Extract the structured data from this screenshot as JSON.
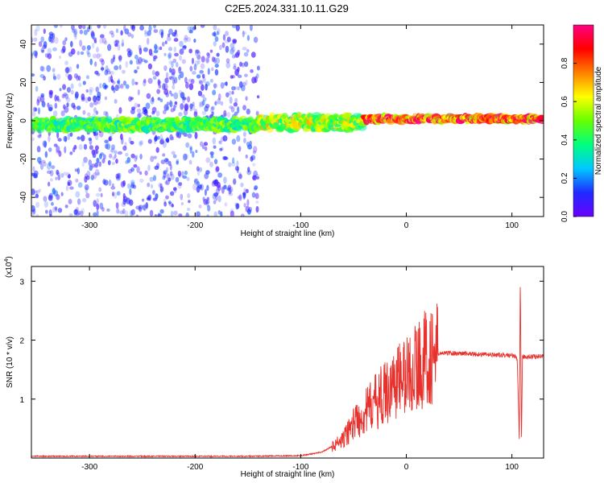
{
  "title": "C2E5.2024.331.10.11.G29",
  "chart_data": [
    {
      "type": "heatmap",
      "panel": "spectrogram",
      "xlabel": "Height of straight line (km)",
      "ylabel": "Frequency (Hz)",
      "xlim": [
        -355,
        130
      ],
      "ylim": [
        -50,
        50
      ],
      "xticks": [
        -300,
        -200,
        -100,
        0,
        100
      ],
      "yticks": [
        -40,
        -20,
        0,
        20,
        40
      ],
      "colorbar": {
        "label": "Normalized spectral amplitude",
        "range": [
          0,
          1
        ],
        "ticks": [
          0.0,
          0.2,
          0.4,
          0.6,
          0.8
        ],
        "colormap": [
          "#6a00ff",
          "#1f2bff",
          "#00c8ff",
          "#00ff80",
          "#66ff00",
          "#ffff00",
          "#ff8000",
          "#ff0000",
          "#ff0080"
        ]
      },
      "features": [
        {
          "segment": "noise",
          "x_range": [
            -355,
            -140
          ],
          "center_freq_hz": 0,
          "spread_hz": 50,
          "amplitude": 0.15
        },
        {
          "segment": "band",
          "x_range": [
            -355,
            -140
          ],
          "center_freq_hz": -2,
          "width_hz": 6,
          "amplitude": 0.45
        },
        {
          "segment": "band",
          "x_range": [
            -140,
            -40
          ],
          "center_freq_hz": -1,
          "width_hz": 8,
          "amplitude": 0.55
        },
        {
          "segment": "band",
          "x_range": [
            -40,
            130
          ],
          "center_freq_hz": 1,
          "width_hz": 3,
          "amplitude": 0.85
        }
      ]
    },
    {
      "type": "line",
      "panel": "snr",
      "xlabel": "Height of straight line (km)",
      "ylabel": "SNR (10 * v/v)",
      "y_scale_label": "(x10",
      "y_scale_exp": "4",
      "xlim": [
        -355,
        130
      ],
      "ylim": [
        0,
        3.25
      ],
      "xticks": [
        -300,
        -200,
        -100,
        0,
        100
      ],
      "yticks": [
        1,
        2,
        3
      ],
      "color": "#e8302c",
      "series": [
        {
          "x": [
            -355,
            -300,
            -250,
            -200,
            -150,
            -100,
            -80,
            -60,
            -50,
            -40,
            -30,
            -20,
            -10,
            0,
            10,
            20,
            30,
            40,
            60,
            80,
            100,
            105,
            107,
            108,
            109,
            110,
            115,
            120,
            130
          ],
          "y": [
            0.03,
            0.03,
            0.03,
            0.03,
            0.03,
            0.04,
            0.1,
            0.3,
            0.6,
            0.75,
            0.95,
            1.1,
            1.3,
            1.4,
            1.55,
            1.72,
            1.77,
            1.78,
            1.77,
            1.75,
            1.74,
            1.7,
            0.3,
            3.2,
            0.2,
            1.72,
            1.72,
            1.72,
            1.73
          ]
        }
      ]
    }
  ]
}
